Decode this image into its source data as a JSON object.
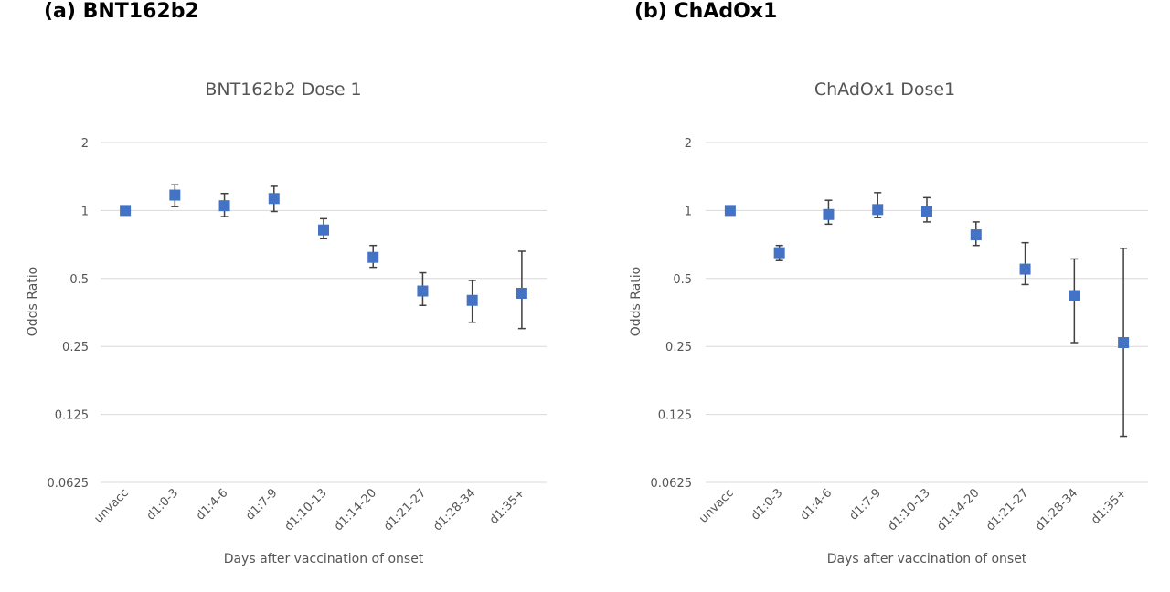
{
  "panels": [
    {
      "label": "(a) BNT162b2"
    },
    {
      "label": "(b) ChAdOx1"
    }
  ],
  "chart_data": [
    {
      "type": "scatter",
      "title": "BNT162b2 Dose 1",
      "xlabel": "Days after vaccination of onset",
      "ylabel": "Odds Ratio",
      "yscale": "log2",
      "ylim": [
        0.0625,
        2
      ],
      "yticks": [
        "2",
        "1",
        "0.5",
        "0.25",
        "0.125",
        "0.0625"
      ],
      "yticks_values": [
        2,
        1,
        0.5,
        0.25,
        0.125,
        0.0625
      ],
      "grid": true,
      "marker_color": "#4472c4",
      "categories": [
        "unvacc",
        "d1:0-3",
        "d1:4-6",
        "d1:7-9",
        "d1:10-13",
        "d1:14-20",
        "d1:21-27",
        "d1:28-34",
        "d1:35+"
      ],
      "values": [
        1.0,
        1.17,
        1.05,
        1.13,
        0.82,
        0.62,
        0.44,
        0.4,
        0.43
      ],
      "ci_low": [
        1.0,
        1.04,
        0.94,
        0.99,
        0.75,
        0.56,
        0.38,
        0.32,
        0.3
      ],
      "ci_high": [
        1.0,
        1.3,
        1.19,
        1.28,
        0.92,
        0.7,
        0.53,
        0.49,
        0.66
      ]
    },
    {
      "type": "scatter",
      "title": "ChAdOx1 Dose1",
      "xlabel": "Days after vaccination of onset",
      "ylabel": "Odds Ratio",
      "yscale": "log2",
      "ylim": [
        0.0625,
        2
      ],
      "yticks": [
        "2",
        "1",
        "0.5",
        "0.25",
        "0.125",
        "0.0625"
      ],
      "yticks_values": [
        2,
        1,
        0.5,
        0.25,
        0.125,
        0.0625
      ],
      "grid": true,
      "marker_color": "#4472c4",
      "categories": [
        "unvacc",
        "d1:0-3",
        "d1:4-6",
        "d1:7-9",
        "d1:10-13",
        "d1:14-20",
        "d1:21-27",
        "d1:28-34",
        "d1:35+"
      ],
      "values": [
        1.0,
        0.65,
        0.96,
        1.01,
        0.99,
        0.78,
        0.55,
        0.42,
        0.26
      ],
      "ci_low": [
        1.0,
        0.6,
        0.87,
        0.93,
        0.89,
        0.7,
        0.47,
        0.26,
        0.1
      ],
      "ci_high": [
        1.0,
        0.7,
        1.11,
        1.2,
        1.14,
        0.89,
        0.72,
        0.61,
        0.68
      ]
    }
  ]
}
